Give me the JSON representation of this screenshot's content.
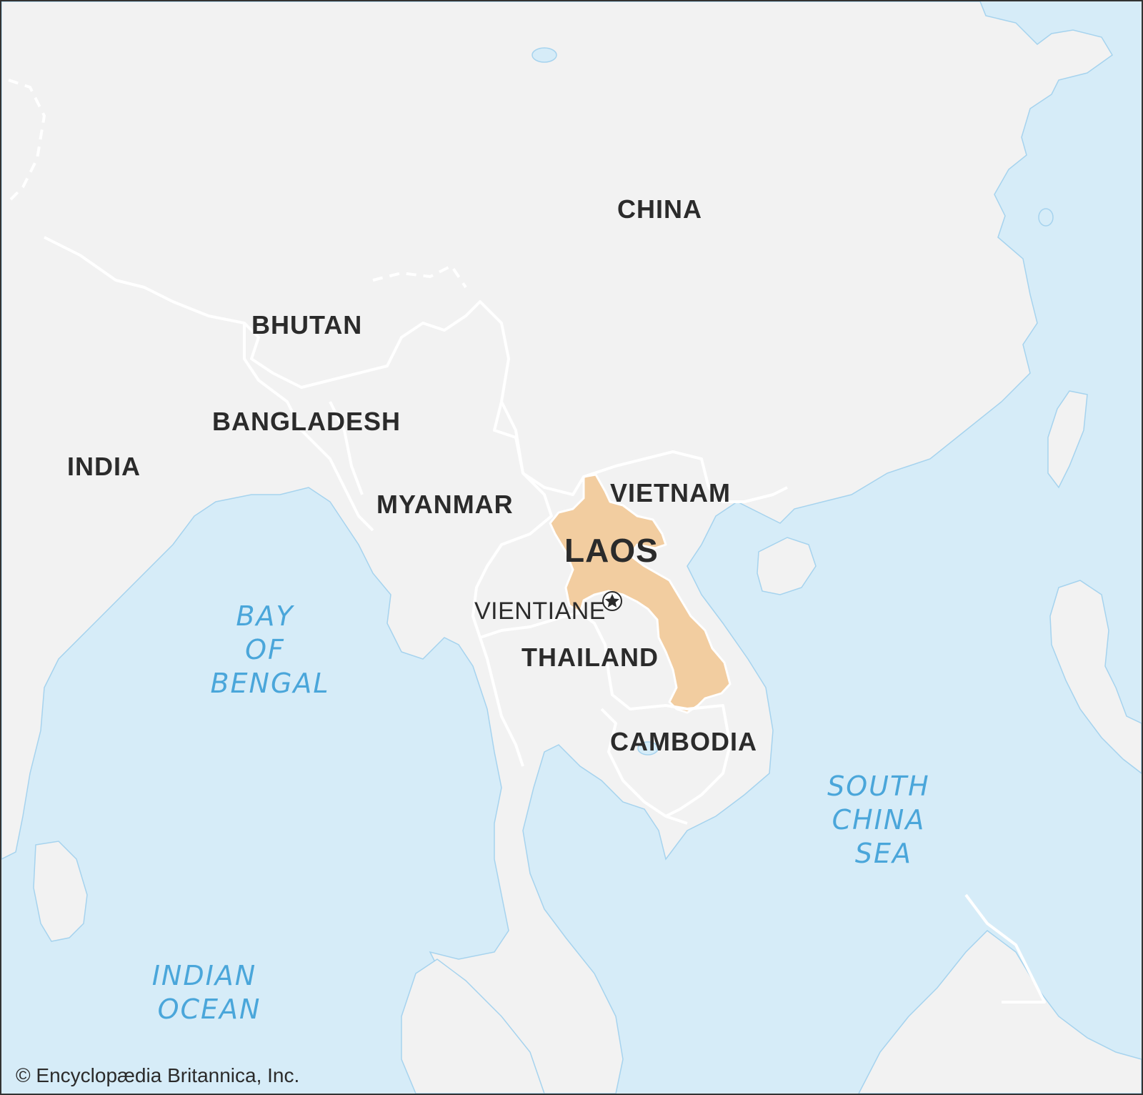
{
  "map": {
    "countries": {
      "china": "CHINA",
      "bhutan": "BHUTAN",
      "bangladesh": "BANGLADESH",
      "india": "INDIA",
      "myanmar": "MYANMAR",
      "vietnam": "VIETNAM",
      "laos": "LAOS",
      "thailand": "THAILAND",
      "cambodia": "CAMBODIA"
    },
    "capital": "VIENTIANE",
    "water": {
      "bay_of_bengal": [
        "BAY",
        "OF",
        "BENGAL"
      ],
      "south_china_sea": [
        "SOUTH",
        "CHINA",
        "SEA"
      ],
      "indian_ocean": [
        "INDIAN",
        "OCEAN"
      ]
    },
    "credit": "© Encyclopædia Britannica, Inc."
  },
  "colors": {
    "water": "#d6ecf8",
    "land": "#f2f2f2",
    "highlight": "#f2cda0",
    "label_water": "#4aa6da",
    "label_land": "#2b2b2b"
  }
}
